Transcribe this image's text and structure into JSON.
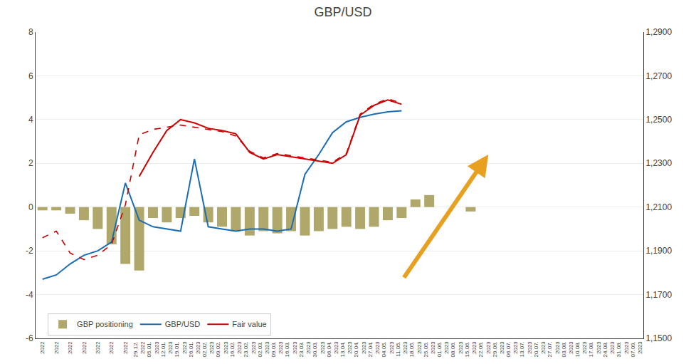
{
  "chart_data": {
    "type": "bar",
    "title": "GBP/USD",
    "categories": [
      "2022",
      "2022",
      "2022",
      "2022",
      "2022",
      "2022",
      "2022",
      "29.12.\n2022",
      "05.01.\n2023",
      "12.01.\n2023",
      "19.01.\n2023",
      "26.01.\n2023",
      "02.02.\n2023",
      "09.02.\n2023",
      "16.02.\n2023",
      "23.02.\n2023",
      "02.03.\n2023",
      "09.03.\n2023",
      "16.03.\n2023",
      "23.03.\n2023",
      "30.03.\n2023",
      "06.04.\n2023",
      "13.04.\n2023",
      "20.04.\n2023",
      "27.04.\n2023",
      "04.05.\n2023",
      "11.05.\n2023",
      "18.05.\n2023",
      "25.05.\n2023",
      "01.06.\n2023",
      "08.06.\n2023",
      "15.06.\n2023",
      "22.06.\n2023",
      "29.06.\n2023",
      "06.07.\n2023",
      "13.07.\n2023",
      "20.07.\n2023",
      "27.07.\n2023",
      "03.08.\n2023",
      "10.08.\n2023",
      "17.08.\n2023",
      "24.08.\n2023",
      "31.08.\n2023",
      "07.09.\n2023"
    ],
    "series": [
      {
        "name": "GBP positioning",
        "type": "bar",
        "color": "#b0a86a",
        "values": [
          -0.15,
          -0.15,
          -0.3,
          -0.6,
          -1.0,
          -1.7,
          -2.6,
          -2.9,
          -0.5,
          -0.7,
          -0.5,
          -0.4,
          -0.7,
          -0.9,
          -1.1,
          -1.3,
          -1.1,
          -1.2,
          -1.1,
          -1.3,
          -1.1,
          -1.0,
          -0.9,
          -1.0,
          -0.9,
          -0.6,
          -0.5,
          0.35,
          0.55,
          0.0,
          0.0,
          -0.2,
          0.0,
          0.0,
          0.0,
          0.0,
          0.0,
          0.0,
          0.0,
          0.0,
          0.0,
          0.0,
          0.0,
          0.0
        ]
      },
      {
        "name": "GBP/USD",
        "type": "line",
        "color": "#1a6db5",
        "values": [
          -3.3,
          -3.1,
          -2.6,
          -2.2,
          -2.0,
          -1.6,
          1.1,
          -0.6,
          -0.9,
          -1.0,
          -1.1,
          2.2,
          -0.9,
          -1.0,
          -1.1,
          -1.0,
          -1.0,
          -1.1,
          -1.0,
          1.5,
          2.4,
          3.4,
          3.9,
          4.1,
          4.25,
          4.35,
          4.4,
          null,
          null,
          null,
          null,
          null,
          null,
          null,
          null,
          null,
          null,
          null,
          null,
          null,
          null,
          null,
          null,
          null
        ]
      },
      {
        "name": "Fair value",
        "type": "line",
        "color": "#cc0000",
        "values": [
          null,
          null,
          null,
          null,
          null,
          null,
          null,
          1.4,
          2.5,
          3.5,
          4.0,
          3.85,
          3.6,
          3.5,
          3.35,
          2.5,
          2.2,
          2.4,
          2.3,
          2.2,
          2.1,
          2.0,
          2.4,
          4.2,
          4.65,
          4.9,
          4.7,
          null,
          null,
          null,
          null,
          null,
          null,
          null,
          null,
          null,
          null,
          null,
          null,
          null,
          null,
          null,
          null,
          null
        ]
      },
      {
        "type": "line",
        "line_style": "dashed",
        "color": "#cc0000",
        "values": [
          -1.4,
          -1.1,
          -2.1,
          -2.4,
          -2.2,
          -1.7,
          0.1,
          3.3,
          3.55,
          3.65,
          3.75,
          3.65,
          3.55,
          3.45,
          3.25,
          2.55,
          2.25,
          2.45,
          2.35,
          2.25,
          2.15,
          2.05,
          2.45,
          4.25,
          4.7,
          4.95,
          4.75,
          null,
          null,
          null,
          null,
          null,
          null,
          null,
          null,
          null,
          null,
          null,
          null,
          null,
          null,
          null,
          null,
          null
        ]
      }
    ],
    "ylim": [
      -6,
      8
    ],
    "yticks": [
      -6,
      -4,
      -2,
      0,
      2,
      4,
      6,
      8
    ],
    "y2lim": [
      1.15,
      1.29
    ],
    "y2ticks": [
      {
        "value": 1.15,
        "label": "1,1500"
      },
      {
        "value": 1.17,
        "label": "1,1700"
      },
      {
        "value": 1.19,
        "label": "1,1900"
      },
      {
        "value": 1.21,
        "label": "1,2100"
      },
      {
        "value": 1.23,
        "label": "1,2300"
      },
      {
        "value": 1.25,
        "label": "1,2500"
      },
      {
        "value": 1.27,
        "label": "1,2700"
      },
      {
        "value": 1.29,
        "label": "1,2900"
      }
    ],
    "grid": true,
    "legend": "lower left",
    "annotations": [
      {
        "type": "arrow",
        "color": "#e8a020"
      }
    ]
  }
}
